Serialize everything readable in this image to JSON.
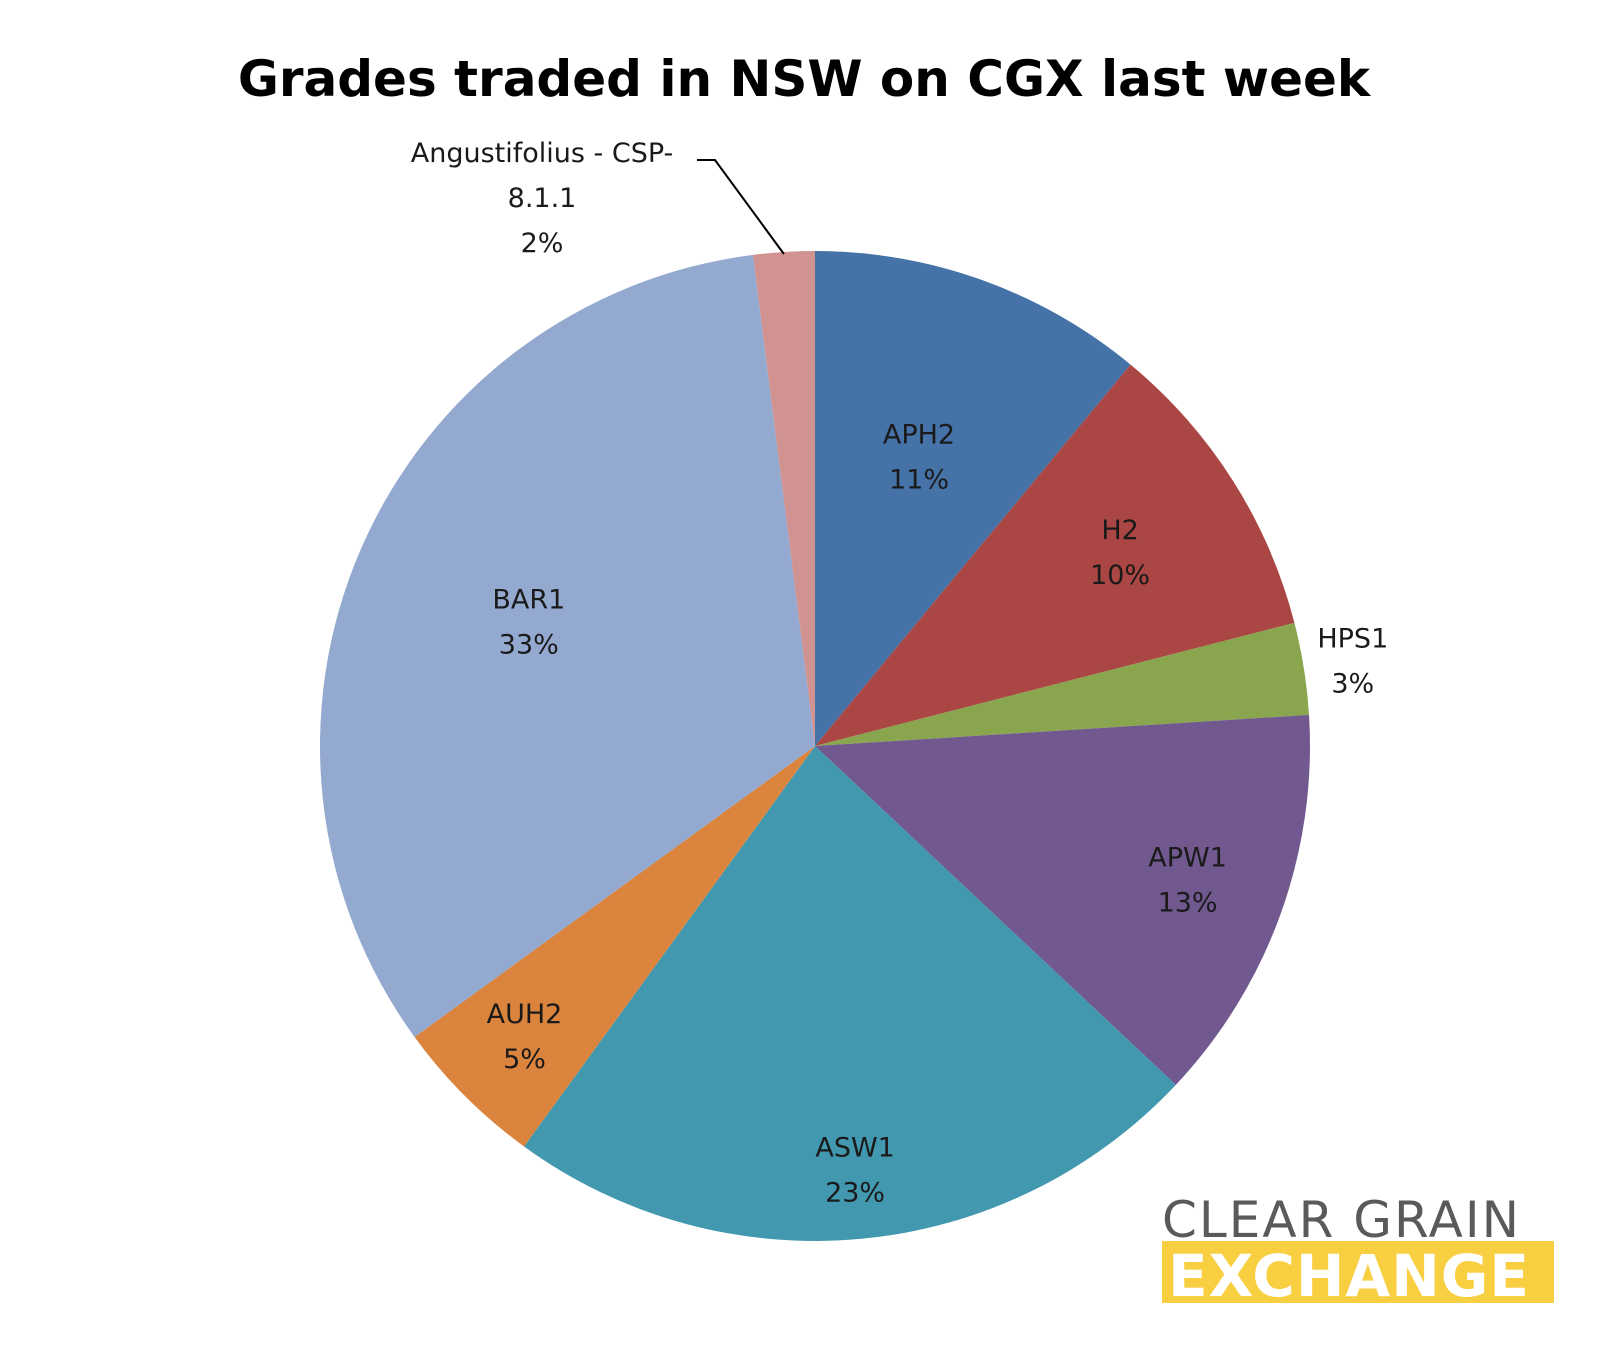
{
  "chart_data": {
    "type": "pie",
    "title": "Grades traded in NSW on CGX last week",
    "start_angle": "12 o'clock",
    "direction": "clockwise",
    "slices": [
      {
        "label": "APH2",
        "value": 11,
        "percent_label": "11%",
        "color": "#4572A7"
      },
      {
        "label": "H2",
        "value": 10,
        "percent_label": "10%",
        "color": "#AA4643"
      },
      {
        "label": "HPS1",
        "value": 3,
        "percent_label": "3%",
        "color": "#89A54E"
      },
      {
        "label": "APW1",
        "value": 13,
        "percent_label": "13%",
        "color": "#71588F"
      },
      {
        "label": "ASW1",
        "value": 23,
        "percent_label": "23%",
        "color": "#4198AF"
      },
      {
        "label": "AUH2",
        "value": 5,
        "percent_label": "5%",
        "color": "#DB843D"
      },
      {
        "label": "BAR1",
        "value": 33,
        "percent_label": "33%",
        "color": "#93A9CF"
      },
      {
        "label": "Angustifolius - CSP-8.1.1",
        "label_lines": [
          "Angustifolius - CSP-",
          "8.1.1"
        ],
        "value": 2,
        "percent_label": "2%",
        "color": "#D09392"
      }
    ]
  },
  "logo": {
    "line1": "CLEAR GRAIN",
    "line2": "EXCHANGE",
    "accent_color": "#F9CF42",
    "text_color": "#5a5a5a"
  }
}
